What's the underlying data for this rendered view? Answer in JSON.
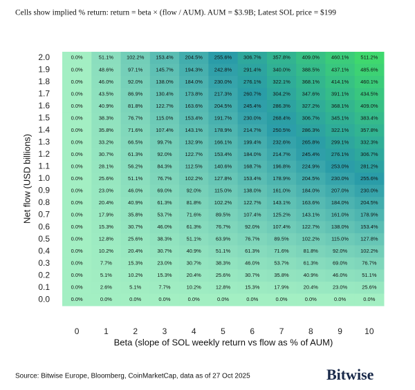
{
  "chart_data": {
    "type": "heatmap",
    "subtitle": "Cells show implied % return: return = beta × (flow / AUM).  AUM = $3.9B; Latest SOL price = $199",
    "x_label": "Beta (slope of SOL weekly return vs flow as % of AUM)",
    "y_label": "Net flow (USD billions)",
    "source": "Source: Bitwise Europe, Bloomberg, CoinMarketCap, data as of 27 Oct 2025",
    "logo": "Bitwise",
    "colorscale": [
      "#a3efc3",
      "#2a9ca8",
      "#3fd86e"
    ],
    "x": [
      0,
      1,
      2,
      3,
      4,
      5,
      6,
      7,
      8,
      9,
      10
    ],
    "y": [
      "2.0",
      "1.9",
      "1.8",
      "1.7",
      "1.6",
      "1.5",
      "1.4",
      "1.3",
      "1.2",
      "1.1",
      "1.0",
      "0.9",
      "0.8",
      "0.7",
      "0.6",
      "0.5",
      "0.4",
      "0.3",
      "0.2",
      "0.1",
      "0.0"
    ],
    "values": [
      [
        0.0,
        51.1,
        102.2,
        153.4,
        204.5,
        255.6,
        306.7,
        357.8,
        409.0,
        460.1,
        511.2
      ],
      [
        0.0,
        48.6,
        97.1,
        145.7,
        194.3,
        242.8,
        291.4,
        340.0,
        388.5,
        437.1,
        485.6
      ],
      [
        0.0,
        46.0,
        92.0,
        138.0,
        184.0,
        230.0,
        276.1,
        322.1,
        368.1,
        414.1,
        460.1
      ],
      [
        0.0,
        43.5,
        86.9,
        130.4,
        173.8,
        217.3,
        260.7,
        304.2,
        347.6,
        391.1,
        434.5
      ],
      [
        0.0,
        40.9,
        81.8,
        122.7,
        163.6,
        204.5,
        245.4,
        286.3,
        327.2,
        368.1,
        409.0
      ],
      [
        0.0,
        38.3,
        76.7,
        115.0,
        153.4,
        191.7,
        230.0,
        268.4,
        306.7,
        345.1,
        383.4
      ],
      [
        0.0,
        35.8,
        71.6,
        107.4,
        143.1,
        178.9,
        214.7,
        250.5,
        286.3,
        322.1,
        357.8
      ],
      [
        0.0,
        33.2,
        66.5,
        99.7,
        132.9,
        166.1,
        199.4,
        232.6,
        265.8,
        299.1,
        332.3
      ],
      [
        0.0,
        30.7,
        61.3,
        92.0,
        122.7,
        153.4,
        184.0,
        214.7,
        245.4,
        276.1,
        306.7
      ],
      [
        0.0,
        28.1,
        56.2,
        84.3,
        112.5,
        140.6,
        168.7,
        196.8,
        224.9,
        253.0,
        281.2
      ],
      [
        0.0,
        25.6,
        51.1,
        76.7,
        102.2,
        127.8,
        153.4,
        178.9,
        204.5,
        230.0,
        255.6
      ],
      [
        0.0,
        23.0,
        46.0,
        69.0,
        92.0,
        115.0,
        138.0,
        161.0,
        184.0,
        207.0,
        230.0
      ],
      [
        0.0,
        20.4,
        40.9,
        61.3,
        81.8,
        102.2,
        122.7,
        143.1,
        163.6,
        184.0,
        204.5
      ],
      [
        0.0,
        17.9,
        35.8,
        53.7,
        71.6,
        89.5,
        107.4,
        125.2,
        143.1,
        161.0,
        178.9
      ],
      [
        0.0,
        15.3,
        30.7,
        46.0,
        61.3,
        76.7,
        92.0,
        107.4,
        122.7,
        138.0,
        153.4
      ],
      [
        0.0,
        12.8,
        25.6,
        38.3,
        51.1,
        63.9,
        76.7,
        89.5,
        102.2,
        115.0,
        127.8
      ],
      [
        0.0,
        10.2,
        20.4,
        30.7,
        40.9,
        51.1,
        61.3,
        71.6,
        81.8,
        92.0,
        102.2
      ],
      [
        0.0,
        7.7,
        15.3,
        23.0,
        30.7,
        38.3,
        46.0,
        53.7,
        61.3,
        69.0,
        76.7
      ],
      [
        0.0,
        5.1,
        10.2,
        15.3,
        20.4,
        25.6,
        30.7,
        35.8,
        40.9,
        46.0,
        51.1
      ],
      [
        0.0,
        2.6,
        5.1,
        7.7,
        10.2,
        12.8,
        15.3,
        17.9,
        20.4,
        23.0,
        25.6
      ],
      [
        0.0,
        0.0,
        0.0,
        0.0,
        0.0,
        0.0,
        0.0,
        0.0,
        0.0,
        0.0,
        0.0
      ]
    ],
    "value_labels": [
      [
        "0.0%",
        "51.1%",
        "102.2%",
        "153.4%",
        "204.5%",
        "255.6%",
        "306.7%",
        "357.8%",
        "409.0%",
        "460.1%",
        "511.2%"
      ],
      [
        "0.0%",
        "48.6%",
        "97.1%",
        "145.7%",
        "194.3%",
        "242.8%",
        "291.4%",
        "340.0%",
        "388.5%",
        "437.1%",
        "485.6%"
      ],
      [
        "0.0%",
        "46.0%",
        "92.0%",
        "138.0%",
        "184.0%",
        "230.0%",
        "276.1%",
        "322.1%",
        "368.1%",
        "414.1%",
        "460.1%"
      ],
      [
        "0.0%",
        "43.5%",
        "86.9%",
        "130.4%",
        "173.8%",
        "217.3%",
        "260.7%",
        "304.2%",
        "347.6%",
        "391.1%",
        "434.5%"
      ],
      [
        "0.0%",
        "40.9%",
        "81.8%",
        "122.7%",
        "163.6%",
        "204.5%",
        "245.4%",
        "286.3%",
        "327.2%",
        "368.1%",
        "409.0%"
      ],
      [
        "0.0%",
        "38.3%",
        "76.7%",
        "115.0%",
        "153.4%",
        "191.7%",
        "230.0%",
        "268.4%",
        "306.7%",
        "345.1%",
        "383.4%"
      ],
      [
        "0.0%",
        "35.8%",
        "71.6%",
        "107.4%",
        "143.1%",
        "178.9%",
        "214.7%",
        "250.5%",
        "286.3%",
        "322.1%",
        "357.8%"
      ],
      [
        "0.0%",
        "33.2%",
        "66.5%",
        "99.7%",
        "132.9%",
        "166.1%",
        "199.4%",
        "232.6%",
        "265.8%",
        "299.1%",
        "332.3%"
      ],
      [
        "0.0%",
        "30.7%",
        "61.3%",
        "92.0%",
        "122.7%",
        "153.4%",
        "184.0%",
        "214.7%",
        "245.4%",
        "276.1%",
        "306.7%"
      ],
      [
        "0.0%",
        "28.1%",
        "56.2%",
        "84.3%",
        "112.5%",
        "140.6%",
        "168.7%",
        "196.8%",
        "224.9%",
        "253.0%",
        "281.2%"
      ],
      [
        "0.0%",
        "25.6%",
        "51.1%",
        "76.7%",
        "102.2%",
        "127.8%",
        "153.4%",
        "178.9%",
        "204.5%",
        "230.0%",
        "255.6%"
      ],
      [
        "0.0%",
        "23.0%",
        "46.0%",
        "69.0%",
        "92.0%",
        "115.0%",
        "138.0%",
        "161.0%",
        "184.0%",
        "207.0%",
        "230.0%"
      ],
      [
        "0.0%",
        "20.4%",
        "40.9%",
        "61.3%",
        "81.8%",
        "102.2%",
        "122.7%",
        "143.1%",
        "163.6%",
        "184.0%",
        "204.5%"
      ],
      [
        "0.0%",
        "17.9%",
        "35.8%",
        "53.7%",
        "71.6%",
        "89.5%",
        "107.4%",
        "125.2%",
        "143.1%",
        "161.0%",
        "178.9%"
      ],
      [
        "0.0%",
        "15.3%",
        "30.7%",
        "46.0%",
        "61.3%",
        "76.7%",
        "92.0%",
        "107.4%",
        "122.7%",
        "138.0%",
        "153.4%"
      ],
      [
        "0.0%",
        "12.8%",
        "25.6%",
        "38.3%",
        "51.1%",
        "63.9%",
        "76.7%",
        "89.5%",
        "102.2%",
        "115.0%",
        "127.8%"
      ],
      [
        "0.0%",
        "10.2%",
        "20.4%",
        "30.7%",
        "40.9%",
        "51.1%",
        "61.3%",
        "71.6%",
        "81.8%",
        "92.0%",
        "102.2%"
      ],
      [
        "0.0%",
        "7.7%",
        "15.3%",
        "23.0%",
        "30.7%",
        "38.3%",
        "46.0%",
        "53.7%",
        "61.3%",
        "69.0%",
        "76.7%"
      ],
      [
        "0.0%",
        "5.1%",
        "10.2%",
        "15.3%",
        "20.4%",
        "25.6%",
        "30.7%",
        "35.8%",
        "40.9%",
        "46.0%",
        "51.1%"
      ],
      [
        "0.0%",
        "2.6%",
        "5.1%",
        "7.7%",
        "10.2%",
        "12.8%",
        "15.3%",
        "17.9%",
        "20.4%",
        "23.0%",
        "25.6%"
      ],
      [
        "0.0%",
        "0.0%",
        "0.0%",
        "0.0%",
        "0.0%",
        "0.0%",
        "0.0%",
        "0.0%",
        "0.0%",
        "0.0%",
        "0.0%"
      ]
    ]
  }
}
